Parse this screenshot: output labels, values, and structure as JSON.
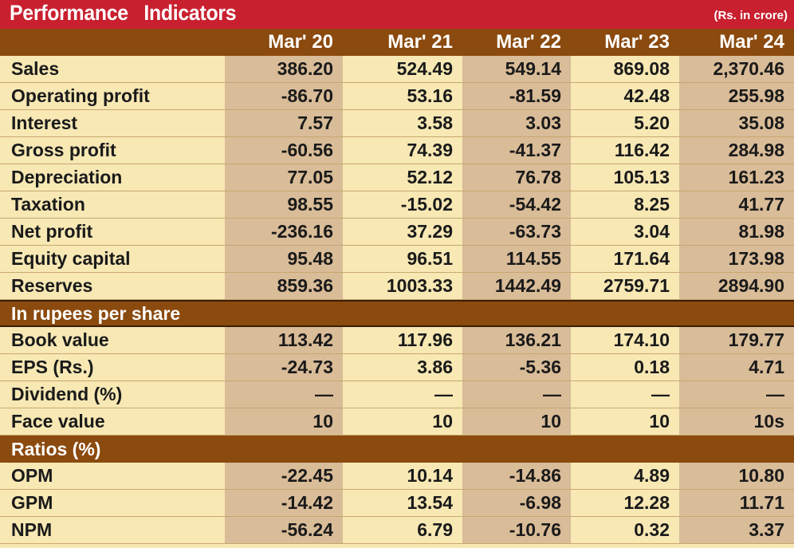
{
  "title": "Performance Indicators",
  "unit": "(Rs. in crore)",
  "columns": [
    "Mar' 20",
    "Mar' 21",
    "Mar' 22",
    "Mar' 23",
    "Mar' 24"
  ],
  "rows1": [
    {
      "label": "Sales",
      "values": [
        "386.20",
        "524.49",
        "549.14",
        "869.08",
        "2,370.46"
      ]
    },
    {
      "label": "Operating profit",
      "values": [
        "-86.70",
        "53.16",
        "-81.59",
        "42.48",
        "255.98"
      ]
    },
    {
      "label": "Interest",
      "values": [
        "7.57",
        "3.58",
        "3.03",
        "5.20",
        "35.08"
      ]
    },
    {
      "label": "Gross profit",
      "values": [
        "-60.56",
        "74.39",
        "-41.37",
        "116.42",
        "284.98"
      ]
    },
    {
      "label": "Depreciation",
      "values": [
        "77.05",
        "52.12",
        "76.78",
        "105.13",
        "161.23"
      ]
    },
    {
      "label": "Taxation",
      "values": [
        "98.55",
        "-15.02",
        "-54.42",
        "8.25",
        "41.77"
      ]
    },
    {
      "label": "Net profit",
      "values": [
        "-236.16",
        "37.29",
        "-63.73",
        "3.04",
        "81.98"
      ]
    },
    {
      "label": "Equity capital",
      "values": [
        "95.48",
        "96.51",
        "114.55",
        "171.64",
        "173.98"
      ]
    },
    {
      "label": "Reserves",
      "values": [
        "859.36",
        "1003.33",
        "1442.49",
        "2759.71",
        "2894.90"
      ]
    }
  ],
  "section2": "In rupees per share",
  "rows2": [
    {
      "label": "Book value",
      "values": [
        "113.42",
        "117.96",
        "136.21",
        "174.10",
        "179.77"
      ]
    },
    {
      "label": "EPS (Rs.)",
      "values": [
        "-24.73",
        "3.86",
        "-5.36",
        "0.18",
        "4.71"
      ]
    },
    {
      "label": "Dividend (%)",
      "values": [
        "—",
        "—",
        "—",
        "—",
        "—"
      ]
    },
    {
      "label": "Face  value",
      "values": [
        "10",
        "10",
        "10",
        "10",
        "10s"
      ]
    }
  ],
  "section3": "Ratios (%)",
  "rows3": [
    {
      "label": "OPM",
      "values": [
        "-22.45",
        "10.14",
        "-14.86",
        "4.89",
        "10.80"
      ]
    },
    {
      "label": "GPM",
      "values": [
        "-14.42",
        "13.54",
        "-6.98",
        "12.28",
        "11.71"
      ]
    },
    {
      "label": "NPM",
      "values": [
        "-56.24",
        "6.79",
        "-10.76",
        "0.32",
        "3.37"
      ]
    }
  ]
}
